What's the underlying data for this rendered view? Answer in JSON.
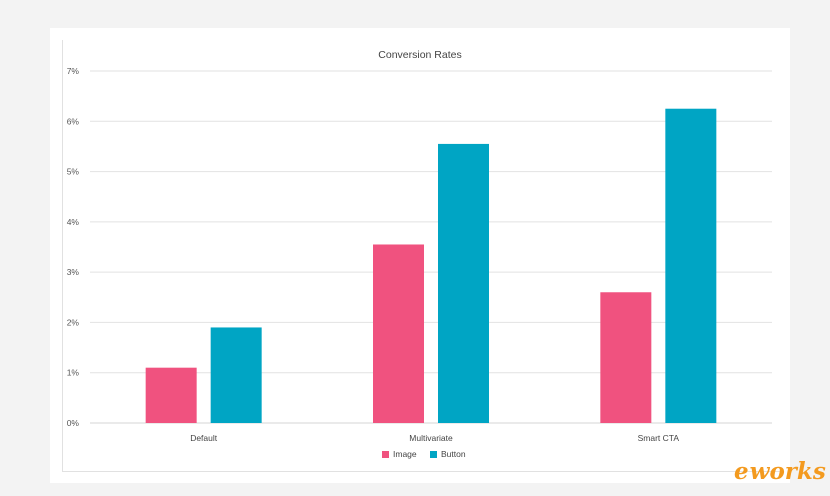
{
  "chart_data": {
    "type": "bar",
    "title": "Conversion Rates",
    "xlabel": "",
    "ylabel": "",
    "categories": [
      "Default",
      "Multivariate",
      "Smart CTA"
    ],
    "series": [
      {
        "name": "Image",
        "values": [
          1.1,
          3.55,
          2.6
        ],
        "color": "#f0527f"
      },
      {
        "name": "Button",
        "values": [
          1.9,
          5.55,
          6.25
        ],
        "color": "#00a5c4"
      }
    ],
    "ylim": [
      0,
      7
    ],
    "yticks": [
      "0%",
      "1%",
      "2%",
      "3%",
      "4%",
      "5%",
      "6%",
      "7%"
    ],
    "grid": true,
    "legend": "bottom"
  },
  "watermark": {
    "text": "e-works",
    "prefix": "e",
    "suffix": "works"
  }
}
